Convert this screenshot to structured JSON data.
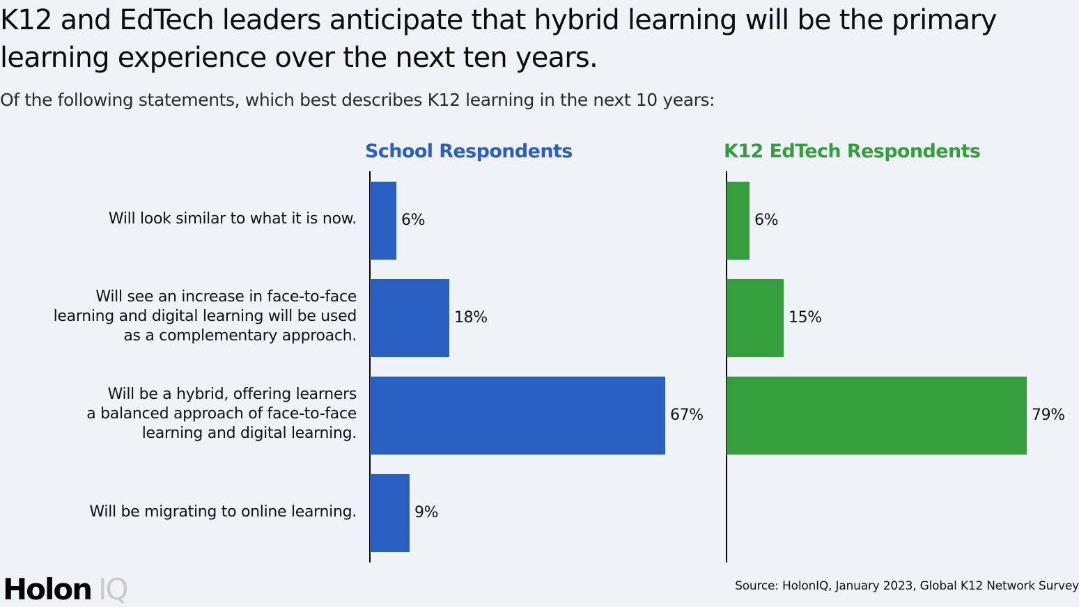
{
  "header": {
    "title": "K12 and EdTech leaders anticipate that hybrid learning will be the primary learning experience over the next ten years.",
    "subtitle": "Of the following statements, which best describes K12 learning in the next 10 years:"
  },
  "footer": {
    "logo_primary": "Holon",
    "logo_secondary": "IQ",
    "source": "Source: HolonIQ, January 2023, Global K12 Network Survey"
  },
  "colors": {
    "school": "#285fc1",
    "edtech": "#339e3b",
    "background": "#eff3f8"
  },
  "chart_data": {
    "type": "bar",
    "orientation": "horizontal",
    "title": "K12 and EdTech leaders anticipate that hybrid learning will be the primary learning experience over the next ten years.",
    "subtitle": "Of the following statements, which best describes K12 learning in the next 10 years:",
    "categories": [
      "Will look similar to what it is now.",
      "Will see an increase in face-to-face learning and digital learning will be used as a complementary approach.",
      "Will be a hybrid, offering learners a balanced approach of face-to-face learning and digital learning.",
      "Will be migrating to online learning."
    ],
    "category_labels_display": [
      "Will look similar to what it is now.",
      "Will see an increase in face-to-face\nlearning and digital learning will be used\nas a complementary approach.",
      "Will be a hybrid, offering learners\na balanced approach of face-to-face\nlearning and digital learning.",
      "Will be migrating to online learning."
    ],
    "series": [
      {
        "name": "School Respondents",
        "color": "#285fc1",
        "values": [
          6,
          18,
          67,
          9
        ],
        "labels": [
          "6%",
          "18%",
          "67%",
          "9%"
        ]
      },
      {
        "name": "K12 EdTech Respondents",
        "color": "#339e3b",
        "values": [
          6,
          15,
          79,
          null
        ],
        "labels": [
          "6%",
          "15%",
          "79%",
          ""
        ]
      }
    ],
    "xlabel": "",
    "ylabel": "",
    "unit": "%",
    "grid": false,
    "legend": "panel titles above each chart",
    "source": "Source: HolonIQ, January 2023, Global K12 Network Survey"
  }
}
